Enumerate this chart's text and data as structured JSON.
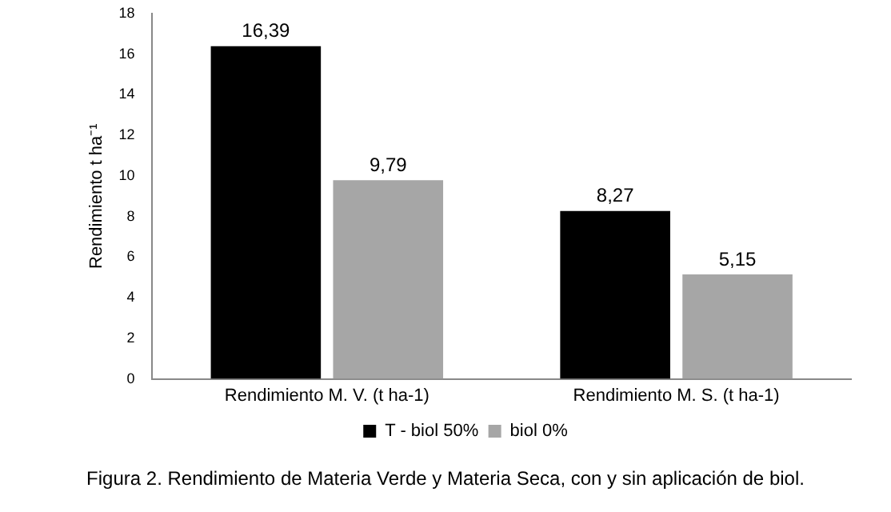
{
  "chart_data": {
    "type": "bar",
    "ylabel": "Rendimiento t ha⁻¹",
    "categories": [
      "Rendimiento M. V. (t ha-1)",
      "Rendimiento M. S. (t ha-1)"
    ],
    "series": [
      {
        "name": "T - biol 50%",
        "color": "#000000",
        "values": [
          16.39,
          8.27
        ],
        "value_labels": [
          "16,39",
          "8,27"
        ]
      },
      {
        "name": "biol 0%",
        "color": "#a6a6a6",
        "values": [
          9.79,
          5.15
        ],
        "value_labels": [
          "9,79",
          "5,15"
        ]
      }
    ],
    "ylim": [
      0,
      18
    ],
    "yticks": [
      0,
      2,
      4,
      6,
      8,
      10,
      12,
      14,
      16,
      18
    ],
    "grid": false,
    "legend": "bottom",
    "annotations": [
      "Figura 2. Rendimiento de Materia Verde y Materia Seca, con y sin aplicación de biol."
    ]
  }
}
